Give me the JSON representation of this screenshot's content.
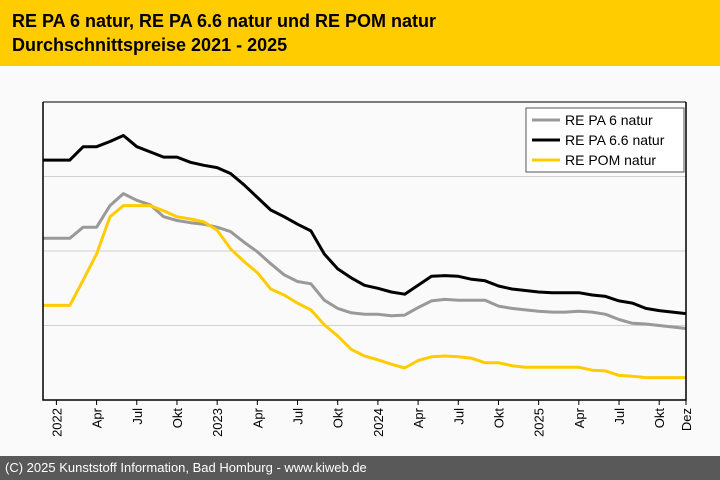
{
  "header": {
    "title_line1": "RE PA 6 natur, RE PA 6.6 natur und RE POM natur",
    "title_line2": "Durchschnittspreise 2021 - 2025"
  },
  "footer": {
    "text": "(C) 2025 Kunststoff Information, Bad Homburg - www.kiweb.de"
  },
  "chart_data": {
    "type": "line",
    "title": "RE PA 6 natur, RE PA 6.6 natur und RE POM natur Durchschnittspreise 2021 - 2025",
    "xlabel": "",
    "ylabel": "",
    "x_start": "2021-12",
    "x_end": "2025-12",
    "x": [
      "2021-12",
      "2022-01",
      "2022-02",
      "2022-03",
      "2022-04",
      "2022-05",
      "2022-06",
      "2022-07",
      "2022-08",
      "2022-09",
      "2022-10",
      "2022-11",
      "2022-12",
      "2023-01",
      "2023-02",
      "2023-03",
      "2023-04",
      "2023-05",
      "2023-06",
      "2023-07",
      "2023-08",
      "2023-09",
      "2023-10",
      "2023-11",
      "2023-12",
      "2024-01",
      "2024-02",
      "2024-03",
      "2024-04",
      "2024-05",
      "2024-06",
      "2024-07",
      "2024-08",
      "2024-09",
      "2024-10",
      "2024-11",
      "2024-12",
      "2025-01",
      "2025-02",
      "2025-03",
      "2025-04",
      "2025-05",
      "2025-06",
      "2025-07",
      "2025-08",
      "2025-09",
      "2025-10",
      "2025-11",
      "2025-12"
    ],
    "ticks": [
      {
        "month": "2022-01",
        "label": "2022"
      },
      {
        "month": "2022-04",
        "label": "Apr"
      },
      {
        "month": "2022-07",
        "label": "Jul"
      },
      {
        "month": "2022-10",
        "label": "Okt"
      },
      {
        "month": "2023-01",
        "label": "2023"
      },
      {
        "month": "2023-04",
        "label": "Apr"
      },
      {
        "month": "2023-07",
        "label": "Jul"
      },
      {
        "month": "2023-10",
        "label": "Okt"
      },
      {
        "month": "2024-01",
        "label": "2024"
      },
      {
        "month": "2024-04",
        "label": "Apr"
      },
      {
        "month": "2024-07",
        "label": "Jul"
      },
      {
        "month": "2024-10",
        "label": "Okt"
      },
      {
        "month": "2025-01",
        "label": "2025"
      },
      {
        "month": "2025-04",
        "label": "Apr"
      },
      {
        "month": "2025-07",
        "label": "Jul"
      },
      {
        "month": "2025-10",
        "label": "Okt"
      },
      {
        "month": "2025-12",
        "label": "Dez"
      }
    ],
    "y_tick_labels_shown": false,
    "ylim": [
      0,
      4
    ],
    "grid": true,
    "y_gridlines": [
      1,
      2,
      3
    ],
    "legend_position": "top-right",
    "series": [
      {
        "name": "RE PA 6 natur",
        "color": "#999999",
        "values": [
          2.17,
          2.17,
          2.17,
          2.32,
          2.32,
          2.61,
          2.77,
          2.68,
          2.62,
          2.46,
          2.41,
          2.38,
          2.36,
          2.32,
          2.26,
          2.12,
          1.99,
          1.83,
          1.68,
          1.59,
          1.56,
          1.34,
          1.23,
          1.17,
          1.15,
          1.15,
          1.13,
          1.14,
          1.24,
          1.33,
          1.35,
          1.34,
          1.34,
          1.34,
          1.26,
          1.23,
          1.21,
          1.19,
          1.18,
          1.18,
          1.19,
          1.18,
          1.15,
          1.08,
          1.03,
          1.02,
          1.0,
          0.98,
          0.96
        ]
      },
      {
        "name": "RE PA 6.6 natur",
        "color": "#000000",
        "values": [
          3.22,
          3.22,
          3.22,
          3.4,
          3.4,
          3.47,
          3.55,
          3.4,
          3.33,
          3.26,
          3.26,
          3.19,
          3.15,
          3.12,
          3.04,
          2.89,
          2.72,
          2.55,
          2.46,
          2.36,
          2.27,
          1.96,
          1.76,
          1.64,
          1.54,
          1.5,
          1.45,
          1.42,
          1.54,
          1.66,
          1.67,
          1.66,
          1.62,
          1.6,
          1.53,
          1.49,
          1.47,
          1.45,
          1.44,
          1.44,
          1.44,
          1.41,
          1.39,
          1.33,
          1.3,
          1.23,
          1.2,
          1.18,
          1.16
        ]
      },
      {
        "name": "RE POM natur",
        "color": "#ffcc00",
        "values": [
          1.27,
          1.27,
          1.27,
          1.61,
          1.96,
          2.46,
          2.61,
          2.61,
          2.61,
          2.54,
          2.46,
          2.43,
          2.39,
          2.28,
          2.03,
          1.86,
          1.71,
          1.49,
          1.41,
          1.3,
          1.21,
          1.01,
          0.86,
          0.68,
          0.59,
          0.54,
          0.48,
          0.43,
          0.53,
          0.58,
          0.59,
          0.58,
          0.56,
          0.5,
          0.5,
          0.46,
          0.44,
          0.44,
          0.44,
          0.44,
          0.44,
          0.4,
          0.39,
          0.33,
          0.32,
          0.3,
          0.3,
          0.3,
          0.3
        ]
      }
    ]
  }
}
